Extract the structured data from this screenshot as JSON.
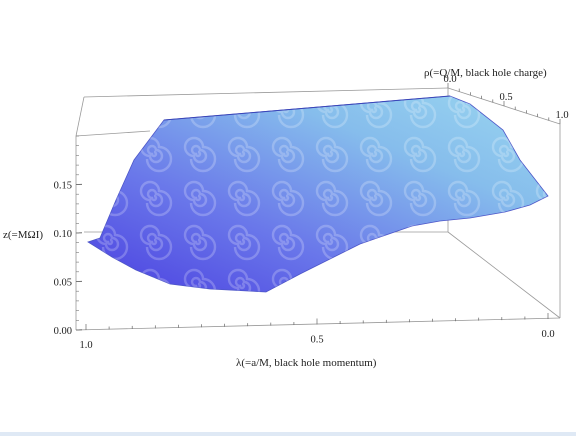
{
  "chart_data": {
    "type": "surface3d",
    "title": "",
    "zlabel": "z(=MΩI)",
    "xlabel": "λ(=a/M, black hole momentum)",
    "ylabel": "ρ(=Q/M, black hole charge)",
    "x_ticks": [
      "1.0",
      "0.5",
      "0.0"
    ],
    "y_ticks": [
      "0.0",
      "0.5",
      "1.0"
    ],
    "z_ticks": [
      "0.00",
      "0.05",
      "0.10",
      "0.15"
    ],
    "xlim": [
      0,
      1
    ],
    "ylim": [
      0,
      1
    ],
    "zlim": [
      0,
      0.2
    ],
    "colors": {
      "surface_light": "#8fd0f0",
      "surface_dark": "#4a3fe0",
      "box": "#9a9a9a"
    }
  }
}
